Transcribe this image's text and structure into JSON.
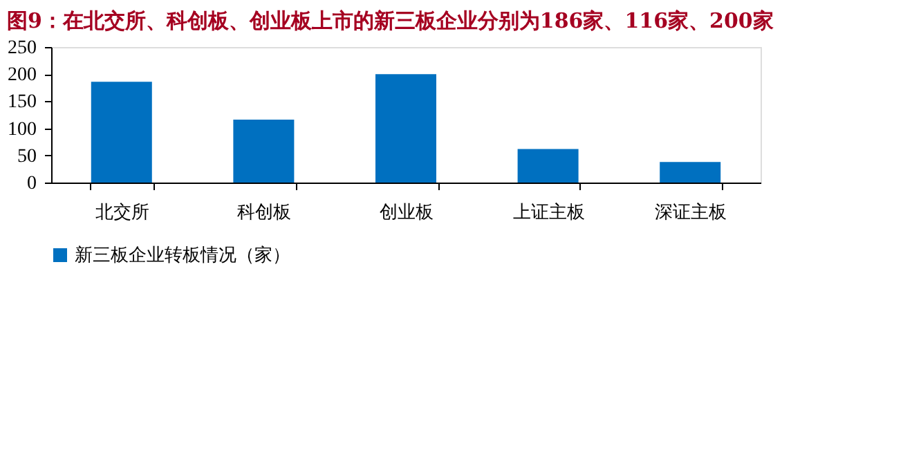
{
  "chart_data": {
    "type": "bar",
    "title": "图9：在北交所、科创板、创业板上市的新三板企业分别为186家、116家、200家",
    "categories": [
      "北交所",
      "科创板",
      "创业板",
      "上证主板",
      "深证主板"
    ],
    "series": [
      {
        "name": "新三板企业转板情况（家）",
        "color": "#0070c0",
        "values": [
          186,
          116,
          200,
          62,
          38
        ]
      }
    ],
    "ylim": [
      0,
      250
    ],
    "yticks": [
      0,
      50,
      100,
      150,
      200,
      250
    ],
    "grid": false,
    "legend": "bottom"
  }
}
